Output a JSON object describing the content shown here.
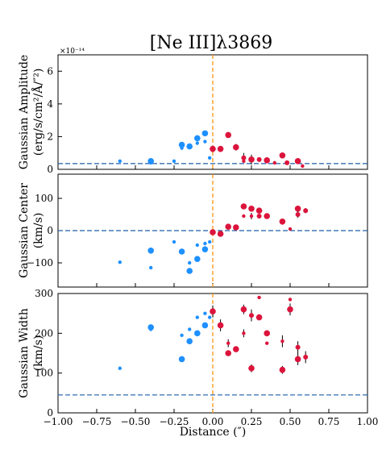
{
  "chart_data": {
    "type": "scatter",
    "title": "[Ne III]λ3869",
    "xlabel": "Distance (″)",
    "xlim": [
      -1.0,
      1.0
    ],
    "xticks": [
      "−1.00",
      "−0.75",
      "−0.50",
      "−0.25",
      "0.00",
      "0.25",
      "0.50",
      "0.75",
      "1.00"
    ],
    "xtick_values": [
      -1.0,
      -0.75,
      -0.5,
      -0.25,
      0.0,
      0.25,
      0.5,
      0.75,
      1.0
    ],
    "vline_x": 0.0,
    "colors": {
      "blue": "#1e90ff",
      "red": "#dc143c",
      "orange": "#ff8c00",
      "ref": "#1f5fa8"
    },
    "panels": [
      {
        "name": "amplitude",
        "ylabel_line1": "Gaussian Amplitude",
        "ylabel_line2": "(erg/s/cm²/Å/″²)",
        "scale_note": "×10⁻¹⁴",
        "ylim": [
          0,
          7
        ],
        "yticks": [
          "0",
          "2",
          "4",
          "6"
        ],
        "ytick_values": [
          0,
          2,
          4,
          6
        ],
        "hline_y": 0.35,
        "blue": [
          {
            "x": -0.6,
            "y": 0.5,
            "s": 2
          },
          {
            "x": -0.4,
            "y": 0.5,
            "s": 4
          },
          {
            "x": -0.4,
            "y": 0.4,
            "s": 2
          },
          {
            "x": -0.25,
            "y": 0.5,
            "s": 2
          },
          {
            "x": -0.2,
            "y": 1.5,
            "s": 4
          },
          {
            "x": -0.2,
            "y": 1.3,
            "s": 2
          },
          {
            "x": -0.15,
            "y": 1.4,
            "s": 4
          },
          {
            "x": -0.1,
            "y": 1.9,
            "s": 4
          },
          {
            "x": -0.1,
            "y": 1.6,
            "s": 2
          },
          {
            "x": -0.05,
            "y": 2.2,
            "s": 4
          },
          {
            "x": -0.05,
            "y": 1.7,
            "s": 2
          },
          {
            "x": -0.02,
            "y": 0.7,
            "s": 2
          }
        ],
        "red": [
          {
            "x": 0.0,
            "y": 1.25,
            "s": 4,
            "e": 0.2
          },
          {
            "x": 0.05,
            "y": 1.25,
            "s": 4
          },
          {
            "x": 0.1,
            "y": 2.1,
            "s": 4
          },
          {
            "x": 0.15,
            "y": 1.35,
            "s": 4,
            "e": 0.2
          },
          {
            "x": 0.2,
            "y": 0.7,
            "s": 3,
            "e": 0.3
          },
          {
            "x": 0.2,
            "y": 0.5,
            "s": 2
          },
          {
            "x": 0.25,
            "y": 0.6,
            "s": 4,
            "e": 0.3
          },
          {
            "x": 0.3,
            "y": 0.6,
            "s": 3
          },
          {
            "x": 0.35,
            "y": 0.55,
            "s": 4
          },
          {
            "x": 0.4,
            "y": 0.4,
            "s": 2
          },
          {
            "x": 0.45,
            "y": 0.85,
            "s": 4
          },
          {
            "x": 0.48,
            "y": 0.4,
            "s": 3
          },
          {
            "x": 0.55,
            "y": 0.5,
            "s": 4
          },
          {
            "x": 0.58,
            "y": 0.2,
            "s": 2
          }
        ]
      },
      {
        "name": "center",
        "ylabel_line1": "Gaussian Center",
        "ylabel_line2": "(km/s)",
        "ylim": [
          -175,
          175
        ],
        "yticks": [
          "−100",
          "0",
          "100"
        ],
        "ytick_values": [
          -100,
          0,
          100
        ],
        "hline_y": 0,
        "blue": [
          {
            "x": -0.6,
            "y": -98,
            "s": 2
          },
          {
            "x": -0.4,
            "y": -62,
            "s": 4
          },
          {
            "x": -0.4,
            "y": -115,
            "s": 2
          },
          {
            "x": -0.25,
            "y": -35,
            "s": 2
          },
          {
            "x": -0.2,
            "y": -65,
            "s": 4
          },
          {
            "x": -0.15,
            "y": -125,
            "s": 4
          },
          {
            "x": -0.15,
            "y": -100,
            "s": 2
          },
          {
            "x": -0.1,
            "y": -88,
            "s": 4
          },
          {
            "x": -0.1,
            "y": -45,
            "s": 2
          },
          {
            "x": -0.05,
            "y": -58,
            "s": 4
          },
          {
            "x": -0.05,
            "y": -40,
            "s": 2
          },
          {
            "x": -0.02,
            "y": -35,
            "s": 2
          }
        ],
        "red": [
          {
            "x": 0.0,
            "y": -5,
            "s": 4
          },
          {
            "x": 0.05,
            "y": -10,
            "s": 4
          },
          {
            "x": 0.1,
            "y": 12,
            "s": 4
          },
          {
            "x": 0.15,
            "y": 10,
            "s": 4
          },
          {
            "x": 0.2,
            "y": 75,
            "s": 4
          },
          {
            "x": 0.2,
            "y": 45,
            "s": 2
          },
          {
            "x": 0.25,
            "y": 68,
            "s": 4
          },
          {
            "x": 0.25,
            "y": 45,
            "s": 2,
            "e": 10
          },
          {
            "x": 0.3,
            "y": 62,
            "s": 4
          },
          {
            "x": 0.3,
            "y": 45,
            "s": 3
          },
          {
            "x": 0.35,
            "y": 45,
            "s": 4
          },
          {
            "x": 0.45,
            "y": 28,
            "s": 4,
            "e": 8
          },
          {
            "x": 0.5,
            "y": 5,
            "s": 2
          },
          {
            "x": 0.55,
            "y": 68,
            "s": 4
          },
          {
            "x": 0.55,
            "y": 50,
            "s": 3,
            "e": 10
          },
          {
            "x": 0.6,
            "y": 62,
            "s": 3,
            "e": 8
          }
        ]
      },
      {
        "name": "width",
        "ylabel_line1": "Gaussian Width",
        "ylabel_line2": "(km/s)",
        "ylim": [
          0,
          300
        ],
        "yticks": [
          "0",
          "100",
          "200",
          "300"
        ],
        "ytick_values": [
          0,
          100,
          200,
          300
        ],
        "hline_y": 45,
        "blue": [
          {
            "x": -0.6,
            "y": 112,
            "s": 2
          },
          {
            "x": -0.4,
            "y": 215,
            "s": 4
          },
          {
            "x": -0.4,
            "y": 210,
            "s": 2
          },
          {
            "x": -0.2,
            "y": 135,
            "s": 4
          },
          {
            "x": -0.2,
            "y": 195,
            "s": 2
          },
          {
            "x": -0.15,
            "y": 180,
            "s": 4
          },
          {
            "x": -0.15,
            "y": 210,
            "s": 2
          },
          {
            "x": -0.1,
            "y": 200,
            "s": 4
          },
          {
            "x": -0.1,
            "y": 240,
            "s": 2
          },
          {
            "x": -0.05,
            "y": 220,
            "s": 4
          },
          {
            "x": -0.05,
            "y": 250,
            "s": 2
          },
          {
            "x": -0.02,
            "y": 240,
            "s": 2
          }
        ],
        "red": [
          {
            "x": 0.0,
            "y": 255,
            "s": 4,
            "e": 15
          },
          {
            "x": 0.05,
            "y": 220,
            "s": 4,
            "e": 15
          },
          {
            "x": 0.1,
            "y": 150,
            "s": 4
          },
          {
            "x": 0.1,
            "y": 175,
            "s": 2,
            "e": 10
          },
          {
            "x": 0.15,
            "y": 160,
            "s": 4
          },
          {
            "x": 0.2,
            "y": 260,
            "s": 4,
            "e": 12
          },
          {
            "x": 0.2,
            "y": 200,
            "s": 2,
            "e": 10
          },
          {
            "x": 0.25,
            "y": 112,
            "s": 4,
            "e": 10
          },
          {
            "x": 0.25,
            "y": 245,
            "s": 3,
            "e": 15
          },
          {
            "x": 0.3,
            "y": 240,
            "s": 4
          },
          {
            "x": 0.3,
            "y": 290,
            "s": 2
          },
          {
            "x": 0.35,
            "y": 200,
            "s": 4
          },
          {
            "x": 0.35,
            "y": 175,
            "s": 2
          },
          {
            "x": 0.45,
            "y": 108,
            "s": 4,
            "e": 10
          },
          {
            "x": 0.45,
            "y": 180,
            "s": 2,
            "e": 15
          },
          {
            "x": 0.5,
            "y": 285,
            "s": 2
          },
          {
            "x": 0.5,
            "y": 260,
            "s": 4,
            "e": 15
          },
          {
            "x": 0.55,
            "y": 135,
            "s": 4,
            "e": 15
          },
          {
            "x": 0.55,
            "y": 165,
            "s": 3,
            "e": 15
          },
          {
            "x": 0.6,
            "y": 140,
            "s": 3,
            "e": 15
          }
        ]
      }
    ]
  }
}
